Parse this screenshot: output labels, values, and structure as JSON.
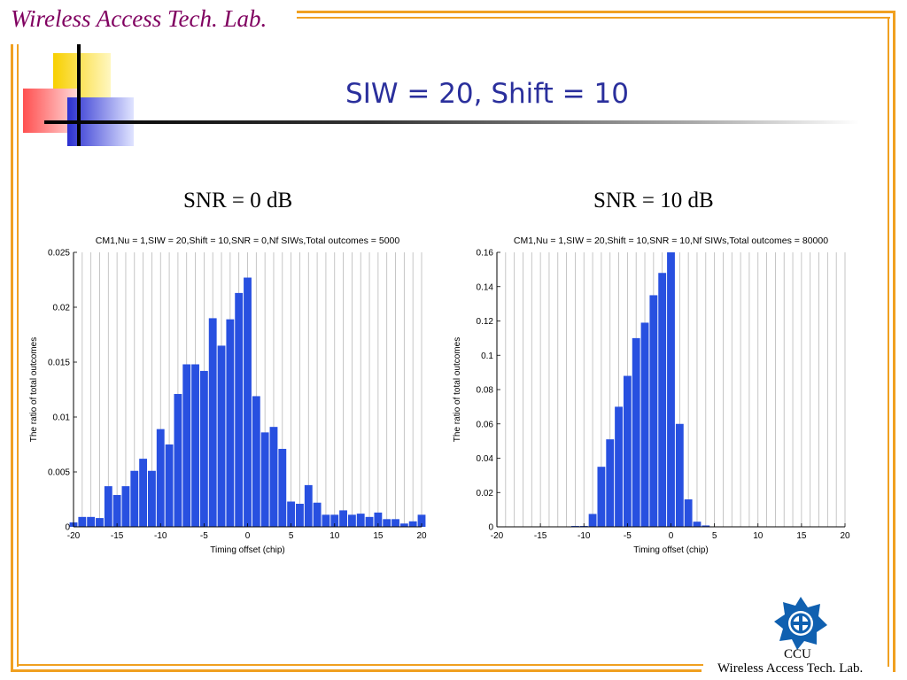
{
  "header": {
    "lab_name": "Wireless Access Tech. Lab.",
    "slide_title": "SIW = 20, Shift = 10"
  },
  "colors": {
    "accent_orange": "#f0a020",
    "title_blue": "#2a2f9c",
    "lab_purple": "#800060",
    "bar_blue": "#2850e0"
  },
  "panels": [
    {
      "caption": "SNR = 0 dB"
    },
    {
      "caption": "SNR = 10 dB"
    }
  ],
  "footer": {
    "ccu": "CCU",
    "lab": "Wireless Access Tech. Lab."
  },
  "chart_data": [
    {
      "type": "bar",
      "title": "CM1,Nu = 1,SIW = 20,Shift = 10,SNR = 0,Nf SIWs,Total outcomes = 5000",
      "xlabel": "Timing offset (chip)",
      "ylabel": "The ratio of total outcomes",
      "xlim": [
        -20,
        20
      ],
      "ylim": [
        0,
        0.025
      ],
      "xticks": [
        "-20",
        "-15",
        "-10",
        "-5",
        "0",
        "5",
        "10",
        "15",
        "20"
      ],
      "yticks": [
        "0",
        "0.005",
        "0.01",
        "0.015",
        "0.02",
        "0.025"
      ],
      "grid": "vertical",
      "x": [
        -20,
        -19,
        -18,
        -17,
        -16,
        -15,
        -14,
        -13,
        -12,
        -11,
        -10,
        -9,
        -8,
        -7,
        -6,
        -5,
        -4,
        -3,
        -2,
        -1,
        0,
        1,
        2,
        3,
        4,
        5,
        6,
        7,
        8,
        9,
        10,
        11,
        12,
        13,
        14,
        15,
        16,
        17,
        18,
        19,
        20
      ],
      "values": [
        0.0004,
        0.0009,
        0.0009,
        0.0008,
        0.0037,
        0.0029,
        0.0037,
        0.0051,
        0.0062,
        0.0051,
        0.0089,
        0.0075,
        0.0121,
        0.0148,
        0.0148,
        0.0142,
        0.019,
        0.0165,
        0.0189,
        0.0213,
        0.0227,
        0.0119,
        0.0086,
        0.0091,
        0.0071,
        0.0023,
        0.0021,
        0.0038,
        0.0022,
        0.0011,
        0.0011,
        0.0015,
        0.0011,
        0.0012,
        0.0009,
        0.0013,
        0.0007,
        0.0007,
        0.0003,
        0.0005,
        0.0011
      ]
    },
    {
      "type": "bar",
      "title": "CM1,Nu = 1,SIW = 20,Shift = 10,SNR = 10,Nf SIWs,Total outcomes = 80000",
      "xlabel": "Timing offset (chip)",
      "ylabel": "The ratio of total outcomes",
      "xlim": [
        -20,
        20
      ],
      "ylim": [
        0,
        0.16
      ],
      "xticks": [
        "-20",
        "-15",
        "-10",
        "-5",
        "0",
        "5",
        "10",
        "15",
        "20"
      ],
      "yticks": [
        "0",
        "0.02",
        "0.04",
        "0.06",
        "0.08",
        "0.1",
        "0.12",
        "0.14",
        "0.16"
      ],
      "grid": "vertical",
      "x": [
        -20,
        -19,
        -18,
        -17,
        -16,
        -15,
        -14,
        -13,
        -12,
        -11,
        -10,
        -9,
        -8,
        -7,
        -6,
        -5,
        -4,
        -3,
        -2,
        -1,
        0,
        1,
        2,
        3,
        4,
        5,
        6,
        7,
        8,
        9,
        10,
        11,
        12,
        13,
        14,
        15,
        16,
        17,
        18,
        19,
        20
      ],
      "values": [
        0,
        0,
        0,
        0,
        0,
        0,
        0,
        0,
        0,
        0.0005,
        0.0005,
        0.0075,
        0.035,
        0.051,
        0.07,
        0.088,
        0.11,
        0.119,
        0.135,
        0.148,
        0.16,
        0.06,
        0.016,
        0.003,
        0.0008,
        0.0002,
        0,
        0,
        0,
        0,
        0,
        0,
        0,
        0,
        0,
        0,
        0,
        0,
        0,
        0,
        0
      ]
    }
  ]
}
